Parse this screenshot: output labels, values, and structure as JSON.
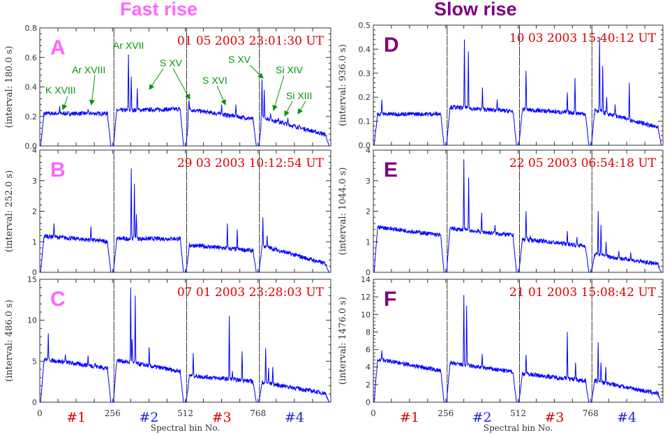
{
  "titles": {
    "left": {
      "text": "Fast rise",
      "color": "#ff66ff"
    },
    "right": {
      "text": "Slow rise",
      "color": "#800080"
    }
  },
  "colors": {
    "line": "#0000ff",
    "annotation": "#009900",
    "timestamp": "#dd0000"
  },
  "x_axis": {
    "label": "Spectral bin No.",
    "range": [
      0,
      1024
    ],
    "tick_labels": [
      "0",
      "256",
      "512",
      "768"
    ],
    "detectors": [
      {
        "label": "#1",
        "color": "#dd0000"
      },
      {
        "label": "#2",
        "color": "#2222dd"
      },
      {
        "label": "#3",
        "color": "#dd0000"
      },
      {
        "label": "#4",
        "color": "#2222dd"
      }
    ]
  },
  "chart_data": [
    {
      "type": "line",
      "panel": "A",
      "column": "left",
      "letter_color": "#ff66ff",
      "timestamp": "01 05 2003  23:01:30 UT",
      "ylabel": "(interval:  180.0 s)",
      "ylim": [
        0,
        0.8
      ],
      "yticks": [
        "0.0",
        "0.2",
        "0.4",
        "0.6",
        "0.8"
      ],
      "segments": [
        {
          "start": 0.22,
          "end": 0.22,
          "peaks": [
            [
              70,
              0.27
            ],
            [
              170,
              0.25
            ]
          ]
        },
        {
          "start": 0.24,
          "end": 0.25,
          "peaks": [
            [
              312,
              0.62
            ],
            [
              322,
              0.47
            ],
            [
              343,
              0.39
            ]
          ]
        },
        {
          "start": 0.25,
          "end": 0.18,
          "peaks": [
            [
              525,
              0.31
            ],
            [
              640,
              0.28
            ],
            [
              690,
              0.28
            ]
          ]
        },
        {
          "start": 0.2,
          "end": 0.07,
          "peaks": [
            [
              782,
              0.45
            ],
            [
              790,
              0.38
            ],
            [
              812,
              0.22
            ],
            [
              840,
              0.19
            ],
            [
              873,
              0.19
            ]
          ]
        }
      ],
      "annotations": [
        "K XVIII",
        "Ar XVIII",
        "Ar XVII",
        "S XV",
        "S XVI",
        "S XV",
        "Si XIV",
        "Si XIII"
      ]
    },
    {
      "type": "line",
      "panel": "B",
      "column": "left",
      "letter_color": "#ff66ff",
      "timestamp": "29 03 2003  10:12:54 UT",
      "ylabel": "(interval:  252.0 s)",
      "ylim": [
        0,
        4
      ],
      "yticks": [
        "0",
        "1",
        "2",
        "3",
        "4"
      ],
      "segments": [
        {
          "start": 1.2,
          "end": 1.0,
          "peaks": [
            [
              50,
              1.6
            ],
            [
              180,
              1.5
            ]
          ]
        },
        {
          "start": 1.1,
          "end": 1.1,
          "peaks": [
            [
              322,
              3.4
            ],
            [
              333,
              2.9
            ],
            [
              340,
              1.9
            ]
          ]
        },
        {
          "start": 0.9,
          "end": 0.7,
          "peaks": [
            [
              660,
              1.6
            ],
            [
              695,
              1.4
            ]
          ]
        },
        {
          "start": 0.9,
          "end": 0.25,
          "peaks": [
            [
              785,
              1.8
            ],
            [
              800,
              1.2
            ]
          ]
        }
      ]
    },
    {
      "type": "line",
      "panel": "C",
      "column": "left",
      "letter_color": "#ff66ff",
      "timestamp": "07 01 2003  23:28:03 UT",
      "ylabel": "(interval:  486.0 s)",
      "ylim": [
        0,
        15
      ],
      "yticks": [
        "0",
        "5",
        "10",
        "15"
      ],
      "segments": [
        {
          "start": 5.3,
          "end": 4.1,
          "peaks": [
            [
              30,
              8.4
            ],
            [
              90,
              5.8
            ],
            [
              170,
              5.7
            ],
            [
              195,
              4.8
            ]
          ]
        },
        {
          "start": 5.2,
          "end": 3.7,
          "peaks": [
            [
              320,
              14
            ],
            [
              325,
              7.7
            ],
            [
              336,
              13
            ],
            [
              385,
              6.7
            ]
          ]
        },
        {
          "start": 3.3,
          "end": 2.5,
          "peaks": [
            [
              540,
              6
            ],
            [
              667,
              10.5
            ],
            [
              678,
              3.8
            ],
            [
              712,
              6.2
            ]
          ]
        },
        {
          "start": 2.5,
          "end": 1.0,
          "peaks": [
            [
              795,
              6.6
            ],
            [
              805,
              4.2
            ],
            [
              820,
              4.3
            ],
            [
              870,
              2
            ]
          ]
        }
      ]
    },
    {
      "type": "line",
      "panel": "D",
      "column": "right",
      "letter_color": "#800080",
      "timestamp": "10 03 2003  15:40:12 UT",
      "ylabel": "(interval:  936.0 s)",
      "ylim": [
        0,
        0.5
      ],
      "yticks": [
        "0.0",
        "0.1",
        "0.2",
        "0.3",
        "0.4",
        "0.5"
      ],
      "segments": [
        {
          "start": 0.13,
          "end": 0.13,
          "peaks": [
            [
              30,
              0.19
            ]
          ]
        },
        {
          "start": 0.16,
          "end": 0.14,
          "peaks": [
            [
              322,
              0.44
            ],
            [
              336,
              0.39
            ],
            [
              386,
              0.24
            ],
            [
              438,
              0.19
            ]
          ]
        },
        {
          "start": 0.15,
          "end": 0.13,
          "peaks": [
            [
              540,
              0.31
            ],
            [
              686,
              0.22
            ],
            [
              713,
              0.28
            ]
          ]
        },
        {
          "start": 0.15,
          "end": 0.07,
          "peaks": [
            [
              800,
              0.45
            ],
            [
              811,
              0.33
            ],
            [
              825,
              0.2
            ],
            [
              855,
              0.17
            ],
            [
              905,
              0.26
            ]
          ]
        }
      ]
    },
    {
      "type": "line",
      "panel": "E",
      "column": "right",
      "letter_color": "#800080",
      "timestamp": "22 05 2003  06:54:18 UT",
      "ylabel": "(interval:  1044.0 s)",
      "ylim": [
        0,
        4
      ],
      "yticks": [
        "0",
        "1",
        "2",
        "3",
        "4"
      ],
      "segments": [
        {
          "start": 1.5,
          "end": 1.2,
          "peaks": [
            [
              50,
              1.4
            ]
          ]
        },
        {
          "start": 1.45,
          "end": 1.2,
          "peaks": [
            [
              320,
              3.7
            ],
            [
              337,
              3.1
            ],
            [
              383,
              1.95
            ],
            [
              430,
              1.55
            ]
          ]
        },
        {
          "start": 1.1,
          "end": 0.85,
          "peaks": [
            [
              540,
              2.0
            ],
            [
              555,
              1.2
            ],
            [
              686,
              1.35
            ],
            [
              720,
              1.15
            ]
          ]
        },
        {
          "start": 0.6,
          "end": 0.25,
          "peaks": [
            [
              795,
              2.0
            ],
            [
              805,
              1.55
            ],
            [
              823,
              1.0
            ],
            [
              868,
              0.7
            ],
            [
              910,
              0.65
            ]
          ]
        }
      ]
    },
    {
      "type": "line",
      "panel": "F",
      "column": "right",
      "letter_color": "#800080",
      "timestamp": "21 01 2003  15:08:42 UT",
      "ylabel": "(interval:  1476.0 s)",
      "ylim": [
        0,
        14
      ],
      "yticks": [
        "0",
        "2",
        "4",
        "6",
        "8",
        "10",
        "12",
        "14"
      ],
      "segments": [
        {
          "start": 5,
          "end": 3.5,
          "peaks": [
            [
              30,
              5.9
            ],
            [
              100,
              4.5
            ]
          ]
        },
        {
          "start": 4.5,
          "end": 3.4,
          "peaks": [
            [
              320,
              12.2
            ],
            [
              330,
              11
            ],
            [
              385,
              5.5
            ]
          ]
        },
        {
          "start": 3.3,
          "end": 2.4,
          "peaks": [
            [
              540,
              5.4
            ],
            [
              686,
              8
            ],
            [
              715,
              4.5
            ]
          ]
        },
        {
          "start": 2.5,
          "end": 0.9,
          "peaks": [
            [
              795,
              6.8
            ],
            [
              805,
              4.5
            ],
            [
              822,
              4
            ],
            [
              880,
              2
            ]
          ]
        }
      ]
    }
  ]
}
